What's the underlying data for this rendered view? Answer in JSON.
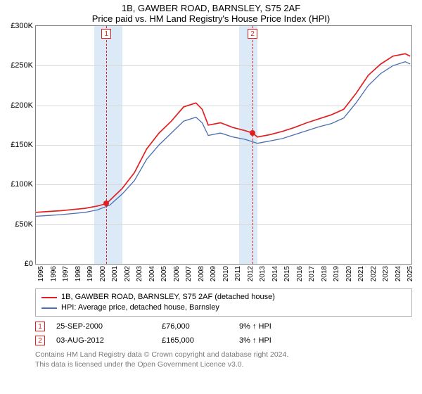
{
  "title": {
    "line1": "1B, GAWBER ROAD, BARNSLEY, S75 2AF",
    "line2": "Price paid vs. HM Land Registry's House Price Index (HPI)",
    "fontsize": 13,
    "color": "#000000"
  },
  "chart": {
    "type": "line",
    "background_color": "#ffffff",
    "grid_color": "#d8d8d8",
    "border_color": "#808080",
    "shade_color": "#dceaf7",
    "x": {
      "min": 1995,
      "max": 2025.5,
      "ticks": [
        1995,
        1996,
        1997,
        1998,
        1999,
        2000,
        2001,
        2002,
        2003,
        2004,
        2005,
        2006,
        2007,
        2008,
        2009,
        2010,
        2011,
        2012,
        2013,
        2014,
        2015,
        2016,
        2017,
        2018,
        2019,
        2020,
        2021,
        2022,
        2023,
        2024,
        2025
      ],
      "label_fontsize": 10
    },
    "y": {
      "min": 0,
      "max": 300000,
      "ticks": [
        0,
        50000,
        100000,
        150000,
        200000,
        250000,
        300000
      ],
      "tick_labels": [
        "£0",
        "£50K",
        "£100K",
        "£150K",
        "£200K",
        "£250K",
        "£300K"
      ],
      "label_fontsize": 11
    },
    "shaded_ranges": [
      {
        "x0": 1999.75,
        "x1": 2002.0
      },
      {
        "x0": 2011.5,
        "x1": 2013.0
      }
    ],
    "event_markers": [
      {
        "n": "1",
        "x": 2000.73,
        "y": 76000
      },
      {
        "n": "2",
        "x": 2012.59,
        "y": 165000
      }
    ],
    "series": [
      {
        "name": "subject",
        "label": "1B, GAWBER ROAD, BARNSLEY, S75 2AF (detached house)",
        "color": "#e02020",
        "line_width": 1.7,
        "points": [
          [
            1995,
            65000
          ],
          [
            1996,
            66000
          ],
          [
            1997,
            67000
          ],
          [
            1998,
            68500
          ],
          [
            1999,
            70000
          ],
          [
            2000,
            73000
          ],
          [
            2000.73,
            76000
          ],
          [
            2001,
            80000
          ],
          [
            2002,
            95000
          ],
          [
            2003,
            115000
          ],
          [
            2004,
            145000
          ],
          [
            2005,
            165000
          ],
          [
            2006,
            180000
          ],
          [
            2007,
            198000
          ],
          [
            2008,
            203000
          ],
          [
            2008.5,
            195000
          ],
          [
            2009,
            175000
          ],
          [
            2010,
            178000
          ],
          [
            2011,
            172000
          ],
          [
            2012,
            168000
          ],
          [
            2012.59,
            165000
          ],
          [
            2013,
            160000
          ],
          [
            2014,
            163000
          ],
          [
            2015,
            167000
          ],
          [
            2016,
            172000
          ],
          [
            2017,
            178000
          ],
          [
            2018,
            183000
          ],
          [
            2019,
            188000
          ],
          [
            2020,
            195000
          ],
          [
            2021,
            215000
          ],
          [
            2022,
            238000
          ],
          [
            2023,
            252000
          ],
          [
            2024,
            262000
          ],
          [
            2025,
            265000
          ],
          [
            2025.4,
            262000
          ]
        ]
      },
      {
        "name": "hpi",
        "label": "HPI: Average price, detached house, Barnsley",
        "color": "#4a6fb0",
        "line_width": 1.3,
        "points": [
          [
            1995,
            60000
          ],
          [
            1996,
            61000
          ],
          [
            1997,
            62000
          ],
          [
            1998,
            63500
          ],
          [
            1999,
            65000
          ],
          [
            2000,
            68000
          ],
          [
            2001,
            74000
          ],
          [
            2002,
            88000
          ],
          [
            2003,
            105000
          ],
          [
            2004,
            132000
          ],
          [
            2005,
            150000
          ],
          [
            2006,
            165000
          ],
          [
            2007,
            180000
          ],
          [
            2008,
            185000
          ],
          [
            2008.5,
            178000
          ],
          [
            2009,
            162000
          ],
          [
            2010,
            165000
          ],
          [
            2011,
            160000
          ],
          [
            2012,
            157000
          ],
          [
            2013,
            152000
          ],
          [
            2014,
            155000
          ],
          [
            2015,
            158000
          ],
          [
            2016,
            163000
          ],
          [
            2017,
            168000
          ],
          [
            2018,
            173000
          ],
          [
            2019,
            177000
          ],
          [
            2020,
            184000
          ],
          [
            2021,
            203000
          ],
          [
            2022,
            225000
          ],
          [
            2023,
            240000
          ],
          [
            2024,
            250000
          ],
          [
            2025,
            255000
          ],
          [
            2025.4,
            252000
          ]
        ]
      }
    ]
  },
  "legend": {
    "border_color": "#b0b0b0",
    "fontsize": 11,
    "items": [
      {
        "series": "subject"
      },
      {
        "series": "hpi"
      }
    ]
  },
  "events": [
    {
      "n": "1",
      "date": "25-SEP-2000",
      "price": "£76,000",
      "hpi": "9% ↑ HPI"
    },
    {
      "n": "2",
      "date": "03-AUG-2012",
      "price": "£165,000",
      "hpi": "3% ↑ HPI"
    }
  ],
  "caption": {
    "line1": "Contains HM Land Registry data © Crown copyright and database right 2024.",
    "line2": "This data is licensed under the Open Government Licence v3.0.",
    "color": "#7a7a7a",
    "fontsize": 10.5
  }
}
